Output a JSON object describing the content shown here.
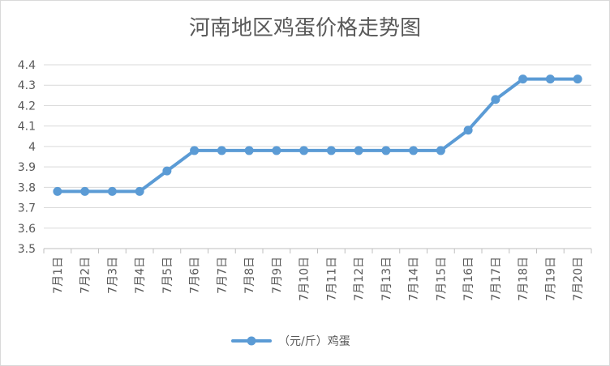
{
  "chart_data": {
    "type": "line",
    "title": "河南地区鸡蛋价格走势图",
    "xlabel": "",
    "ylabel": "",
    "categories": [
      "7月1日",
      "7月2日",
      "7月3日",
      "7月4日",
      "7月5日",
      "7月6日",
      "7月7日",
      "7月8日",
      "7月9日",
      "7月10日",
      "7月11日",
      "7月12日",
      "7月13日",
      "7月14日",
      "7月15日",
      "7月16日",
      "7月17日",
      "7月18日",
      "7月19日",
      "7月20日"
    ],
    "series": [
      {
        "name": "（元/斤）鸡蛋",
        "values": [
          3.78,
          3.78,
          3.78,
          3.78,
          3.88,
          3.98,
          3.98,
          3.98,
          3.98,
          3.98,
          3.98,
          3.98,
          3.98,
          3.98,
          3.98,
          4.08,
          4.23,
          4.33,
          4.33,
          4.33
        ],
        "color": "#5b9bd5"
      }
    ],
    "ylim": [
      3.5,
      4.4
    ],
    "yticks": [
      "3.5",
      "3.6",
      "3.7",
      "3.8",
      "3.9",
      "4",
      "4.1",
      "4.2",
      "4.3",
      "4.4"
    ],
    "grid": true,
    "legend_position": "bottom"
  }
}
